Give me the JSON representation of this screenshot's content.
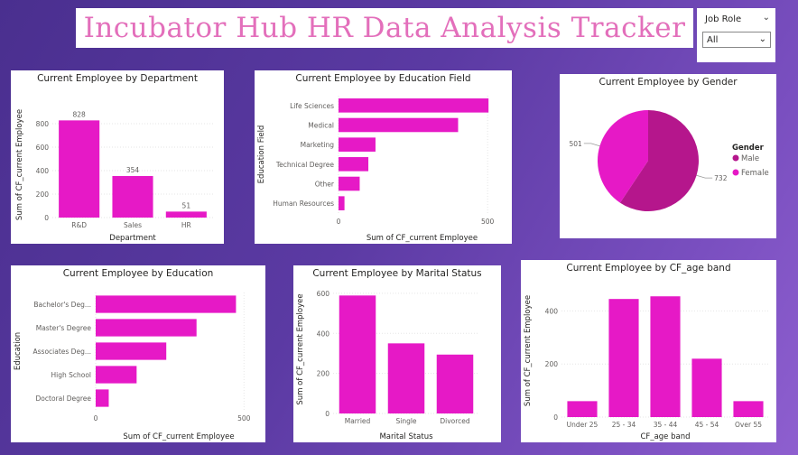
{
  "header": {
    "title": "Incubator Hub HR Data Analysis Tracker"
  },
  "slicer": {
    "label": "Job Role",
    "value": "All",
    "chevron_icon": "chevron-down-icon"
  },
  "colors": {
    "accent": "#e619c6",
    "male": "#b5168c",
    "female": "#e619c6"
  },
  "chart_data": [
    {
      "id": "dept",
      "type": "bar",
      "title": "Current Employee by Department",
      "xlabel": "Department",
      "ylabel": "Sum of CF_current Employee",
      "categories": [
        "R&D",
        "Sales",
        "HR"
      ],
      "values": [
        828,
        354,
        51
      ],
      "ylim": [
        0,
        900
      ],
      "yticks": [
        "0",
        "200",
        "400",
        "600",
        "800"
      ],
      "data_labels": [
        "828",
        "354",
        "51"
      ]
    },
    {
      "id": "edufield",
      "type": "bar",
      "orientation": "horizontal",
      "title": "Current Employee by Education Field",
      "xlabel": "Sum of CF_current Employee",
      "ylabel": "Education Field",
      "categories": [
        "Life Sciences",
        "Medical",
        "Marketing",
        "Technical Degree",
        "Other",
        "Human Resources"
      ],
      "values": [
        503,
        401,
        124,
        100,
        71,
        20
      ],
      "xlim": [
        0,
        560
      ],
      "xticks": [
        "0",
        "500"
      ]
    },
    {
      "id": "gender",
      "type": "pie",
      "title": "Current Employee by Gender",
      "legend_title": "Gender",
      "categories": [
        "Male",
        "Female"
      ],
      "values": [
        732,
        501
      ],
      "data_labels": [
        "732",
        "501"
      ],
      "legend": "right"
    },
    {
      "id": "education",
      "type": "bar",
      "orientation": "horizontal",
      "title": "Current Employee by Education",
      "xlabel": "Sum of CF_current Employee",
      "ylabel": "Education",
      "categories": [
        "Bachelor's Deg...",
        "Master's Degree",
        "Associates Deg...",
        "High School",
        "Doctoral Degree"
      ],
      "values": [
        473,
        340,
        238,
        138,
        44
      ],
      "xlim": [
        0,
        560
      ],
      "xticks": [
        "0",
        "500"
      ]
    },
    {
      "id": "marital",
      "type": "bar",
      "title": "Current Employee by Marital Status",
      "xlabel": "Marital Status",
      "ylabel": "Sum of CF_current Employee",
      "categories": [
        "Married",
        "Single",
        "Divorced"
      ],
      "values": [
        589,
        350,
        294
      ],
      "ylim": [
        0,
        640
      ],
      "yticks": [
        "0",
        "200",
        "400",
        "600"
      ]
    },
    {
      "id": "ageband",
      "type": "bar",
      "title": "Current Employee by CF_age band",
      "xlabel": "CF_age band",
      "ylabel": "Sum of CF_current Employee",
      "categories": [
        "Under 25",
        "25 - 34",
        "35 - 44",
        "45 - 54",
        "Over 55"
      ],
      "values": [
        60,
        445,
        455,
        220,
        60
      ],
      "ylim": [
        0,
        500
      ],
      "yticks": [
        "0",
        "200",
        "400"
      ]
    }
  ]
}
